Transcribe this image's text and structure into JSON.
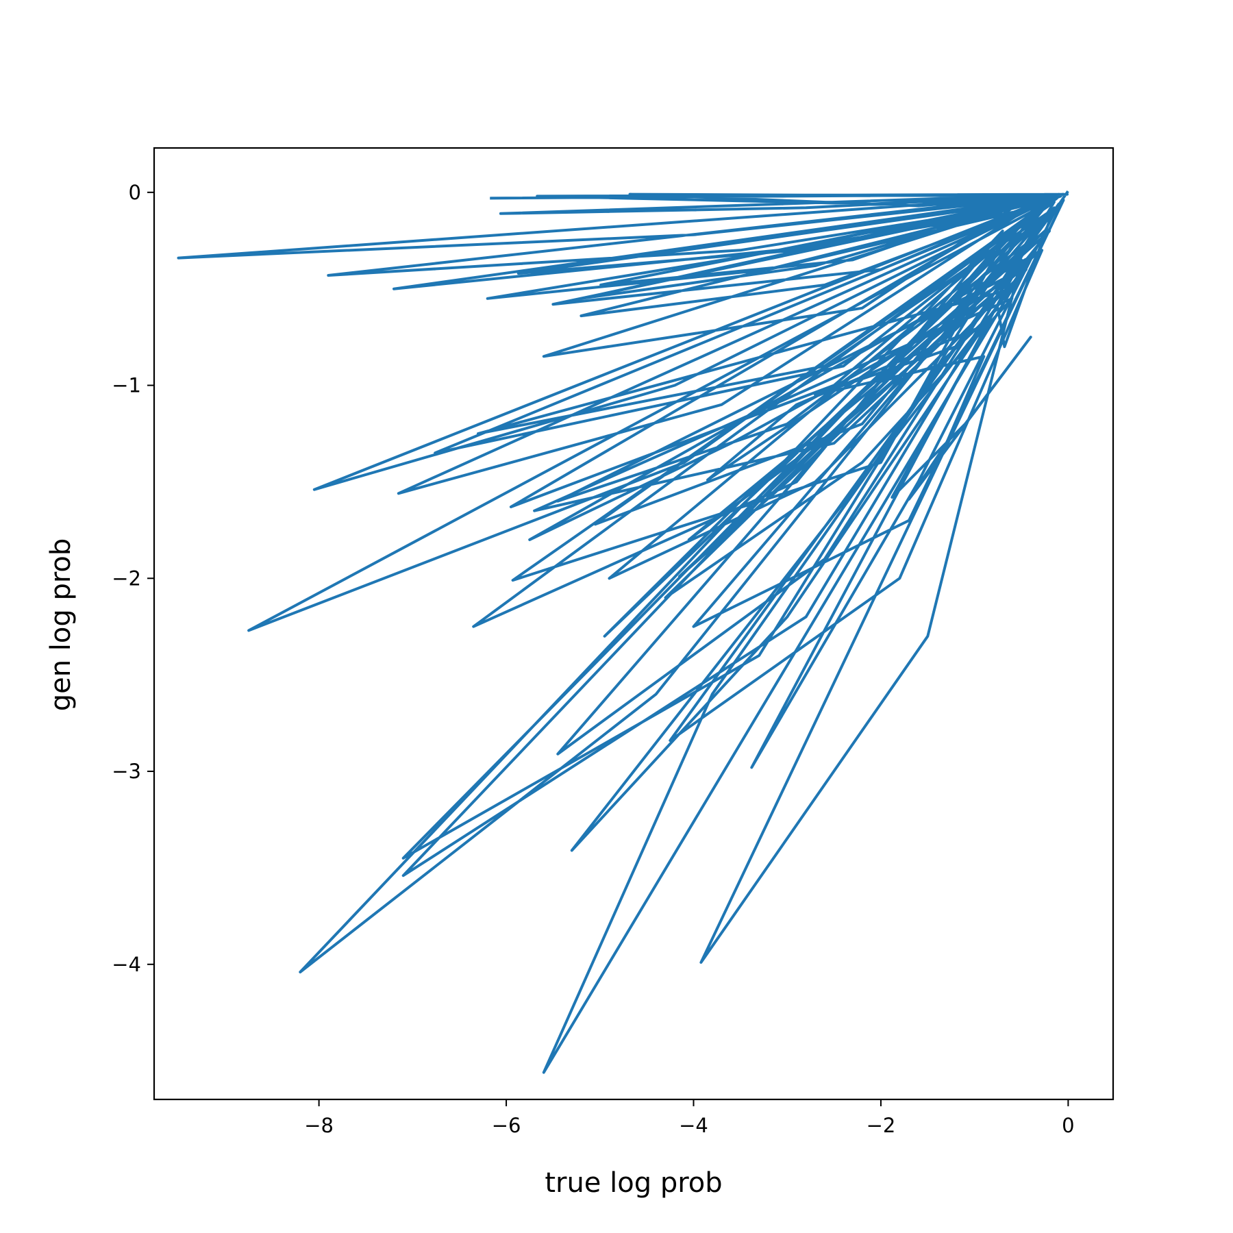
{
  "chart_data": {
    "type": "line",
    "title": "",
    "xlabel": "true log prob",
    "ylabel": "gen log prob",
    "xlim": [
      -9.76,
      0.48
    ],
    "ylim": [
      -4.7,
      0.23
    ],
    "xticks": [
      -8,
      -6,
      -4,
      -2,
      0
    ],
    "yticks": [
      0,
      -1,
      -2,
      -3,
      -4
    ],
    "xtick_labels": [
      "−8",
      "−6",
      "−4",
      "−2",
      "0"
    ],
    "ytick_labels": [
      "0",
      "−1",
      "−2",
      "−3",
      "−4"
    ],
    "grid": false,
    "legend": "none",
    "colors": {
      "series": "#1f77b4",
      "axes": "#000000",
      "background": "#ffffff"
    },
    "series": [
      {
        "x": [
          -6.16,
          -3.0,
          -0.01,
          -5.67,
          -2.1,
          -0.05,
          -6.06,
          -2.8,
          -0.03,
          -9.5,
          -4.0,
          -0.15,
          -4.99,
          -2.3,
          -0.35,
          -7.9,
          -3.5,
          -0.4,
          -5.2,
          -2.6,
          -0.08,
          -4.68,
          -1.6,
          -0.02,
          -7.2,
          -3.1,
          -0.2,
          -5.6,
          -2.2,
          -0.5,
          -5.2,
          -2.7,
          -0.3,
          -5.87,
          -2.9,
          -0.6,
          -5.5,
          -2.0,
          -0.1,
          -8.05,
          -4.2,
          -0.25,
          -7.15,
          -3.7,
          -0.45,
          -6.76,
          -2.4,
          -0.12,
          -8.75,
          -4.1,
          -0.3,
          -6.2,
          -3.2,
          -0.55,
          -5.95,
          -2.5,
          -0.18,
          -5.05,
          -2.2,
          -0.35,
          -6.35,
          -2.9,
          -0.7,
          -8.2,
          -4.4,
          -0.22,
          -7.1,
          -3.3,
          -0.4,
          -7.1,
          -2.8,
          -0.15,
          -5.93,
          -2.0,
          -0.65,
          -5.45,
          -2.6,
          -0.3,
          -4.0,
          -1.7,
          -0.05,
          -3.92,
          -1.5,
          -0.5,
          -3.38,
          -1.6,
          -0.1,
          -4.25,
          -1.8,
          -0.28,
          -5.75,
          -3.6,
          -0.6,
          -6.3,
          -2.6,
          -0.2,
          -4.9,
          -2.7,
          -0.45,
          -5.3,
          -3.0,
          -0.35,
          -5.6,
          -3.8,
          -0.15,
          -4.95,
          -3.5,
          -0.25,
          -4.15,
          -3.0,
          -0.7,
          -5.45,
          -3.0,
          -0.4,
          -4.3,
          -2.2,
          -0.6,
          -5.7,
          -2.5,
          -0.3,
          -4.05,
          -2.4,
          -0.5,
          -3.85,
          -2.9,
          -0.85,
          -1.88,
          -1.1,
          -0.4,
          -1.7,
          -1.3,
          -0.9,
          -2.7,
          -1.2,
          -0.2,
          -2.0,
          -1.4,
          -0.75,
          -0.68,
          -0.18,
          -0.01
        ],
        "y": [
          -0.03,
          -0.02,
          -0.01,
          -0.02,
          -0.06,
          -0.01,
          -0.11,
          -0.08,
          -0.01,
          -0.34,
          -0.22,
          -0.02,
          -0.48,
          -0.35,
          -0.02,
          -0.43,
          -0.3,
          -0.06,
          -0.64,
          -0.48,
          -0.02,
          -0.01,
          -0.07,
          -0.01,
          -0.5,
          -0.3,
          -0.02,
          -0.85,
          -0.6,
          -0.05,
          -0.55,
          -0.38,
          -0.04,
          -0.42,
          -0.3,
          -0.08,
          -0.58,
          -0.4,
          -0.01,
          -1.54,
          -1.0,
          -0.05,
          -1.56,
          -1.1,
          -0.09,
          -1.35,
          -0.9,
          -0.03,
          -2.27,
          -1.4,
          -0.08,
          -0.55,
          -0.4,
          -0.1,
          -1.63,
          -1.0,
          -0.04,
          -1.72,
          -1.2,
          -0.11,
          -2.25,
          -1.5,
          -0.2,
          -4.04,
          -2.6,
          -0.06,
          -3.45,
          -2.4,
          -0.12,
          -3.54,
          -2.2,
          -0.05,
          -2.01,
          -1.4,
          -0.22,
          -2.91,
          -1.9,
          -0.15,
          -2.25,
          -1.7,
          -0.04,
          -3.99,
          -2.3,
          -0.35,
          -2.98,
          -1.5,
          -0.06,
          -2.84,
          -2.0,
          -0.3,
          -1.8,
          -1.3,
          -0.5,
          -1.25,
          -0.9,
          -0.1,
          -2.0,
          -1.5,
          -0.4,
          -3.41,
          -2.2,
          -0.3,
          -4.56,
          -2.6,
          -0.08,
          -2.3,
          -1.6,
          -0.2,
          -1.99,
          -1.5,
          -0.45,
          -1.6,
          -1.2,
          -0.25,
          -2.1,
          -1.4,
          -0.55,
          -1.65,
          -1.3,
          -0.3,
          -1.8,
          -1.2,
          -0.4,
          -1.49,
          -1.1,
          -0.68,
          -1.58,
          -1.2,
          -0.75,
          -1.59,
          -1.3,
          -0.85,
          -1.05,
          -0.8,
          -0.2,
          -0.98,
          -0.9,
          -0.6,
          -0.8,
          -0.12,
          0.0
        ]
      }
    ]
  }
}
